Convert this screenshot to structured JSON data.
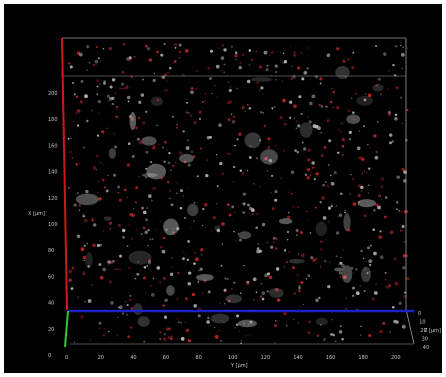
{
  "viewer": {
    "x_axis_title": "X [µm]",
    "y_axis_title": "Y [µm]",
    "z_axis_title": "Z [µm]",
    "x_ticks": [
      "0",
      "20",
      "40",
      "60",
      "80",
      "100",
      "120",
      "140",
      "160",
      "180",
      "200"
    ],
    "y_ticks": [
      "0",
      "20",
      "40",
      "60",
      "80",
      "100",
      "120",
      "140",
      "160",
      "180",
      "200"
    ],
    "z_ticks": [
      "0",
      "10",
      "20",
      "30",
      "40"
    ],
    "colors": {
      "background": "#000000",
      "x_axis": "#d01818",
      "y_axis": "#1a22c8",
      "z_axis": "#2ec82e",
      "bounding_box": "#9a9a9a",
      "red_channel": "#c2262a",
      "gray_channel": "#bdbdbd"
    }
  }
}
